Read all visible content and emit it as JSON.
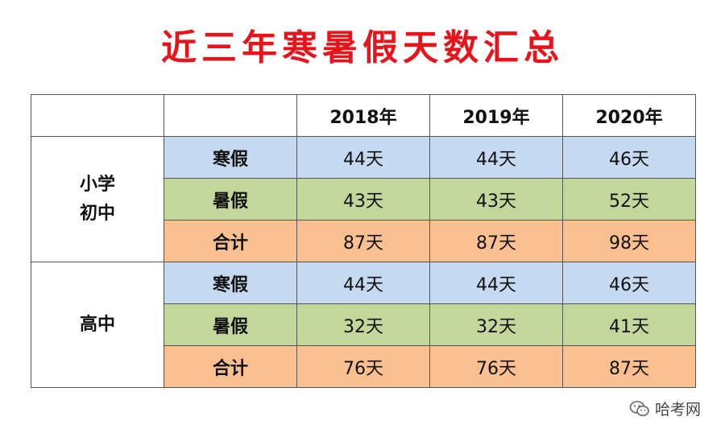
{
  "title": "近三年寒暑假天数汇总",
  "header": {
    "years": [
      "2018年",
      "2019年",
      "2020年"
    ]
  },
  "groups": [
    {
      "label_lines": [
        "小学",
        "初中"
      ],
      "rows": [
        {
          "label": "寒假",
          "values": [
            "44天",
            "44天",
            "46天"
          ]
        },
        {
          "label": "暑假",
          "values": [
            "43天",
            "43天",
            "52天"
          ]
        },
        {
          "label": "合计",
          "values": [
            "87天",
            "87天",
            "98天"
          ]
        }
      ]
    },
    {
      "label_lines": [
        "高中"
      ],
      "rows": [
        {
          "label": "寒假",
          "values": [
            "44天",
            "44天",
            "46天"
          ]
        },
        {
          "label": "暑假",
          "values": [
            "32天",
            "32天",
            "41天"
          ]
        },
        {
          "label": "合计",
          "values": [
            "76天",
            "76天",
            "87天"
          ]
        }
      ]
    }
  ],
  "colors": {
    "title": "#e8141b",
    "winter_row": "#c5d9f1",
    "summer_row": "#c4d79b",
    "total_row": "#fac090"
  },
  "watermark": {
    "icon": "wechat-icon",
    "text": "哈考网"
  }
}
